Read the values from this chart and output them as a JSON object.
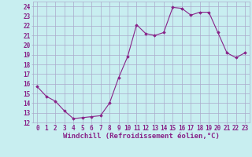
{
  "x": [
    0,
    1,
    2,
    3,
    4,
    5,
    6,
    7,
    8,
    9,
    10,
    11,
    12,
    13,
    14,
    15,
    16,
    17,
    18,
    19,
    20,
    21,
    22,
    23
  ],
  "y": [
    15.7,
    14.7,
    14.2,
    13.2,
    12.4,
    12.5,
    12.6,
    12.7,
    14.0,
    16.6,
    18.8,
    22.1,
    21.2,
    21.0,
    21.3,
    23.9,
    23.8,
    23.1,
    23.4,
    23.4,
    21.3,
    19.2,
    18.7,
    19.2
  ],
  "line_color": "#882288",
  "marker": "D",
  "marker_size": 1.8,
  "bg_color": "#c8eef0",
  "grid_color": "#aaaacc",
  "xlabel": "Windchill (Refroidissement éolien,°C)",
  "xlabel_fontsize": 6.5,
  "ylabel_ticks": [
    12,
    13,
    14,
    15,
    16,
    17,
    18,
    19,
    20,
    21,
    22,
    23,
    24
  ],
  "xlim": [
    -0.5,
    23.5
  ],
  "ylim": [
    12,
    24.5
  ],
  "tick_fontsize": 5.5,
  "tick_color": "#882288",
  "linewidth": 0.8
}
